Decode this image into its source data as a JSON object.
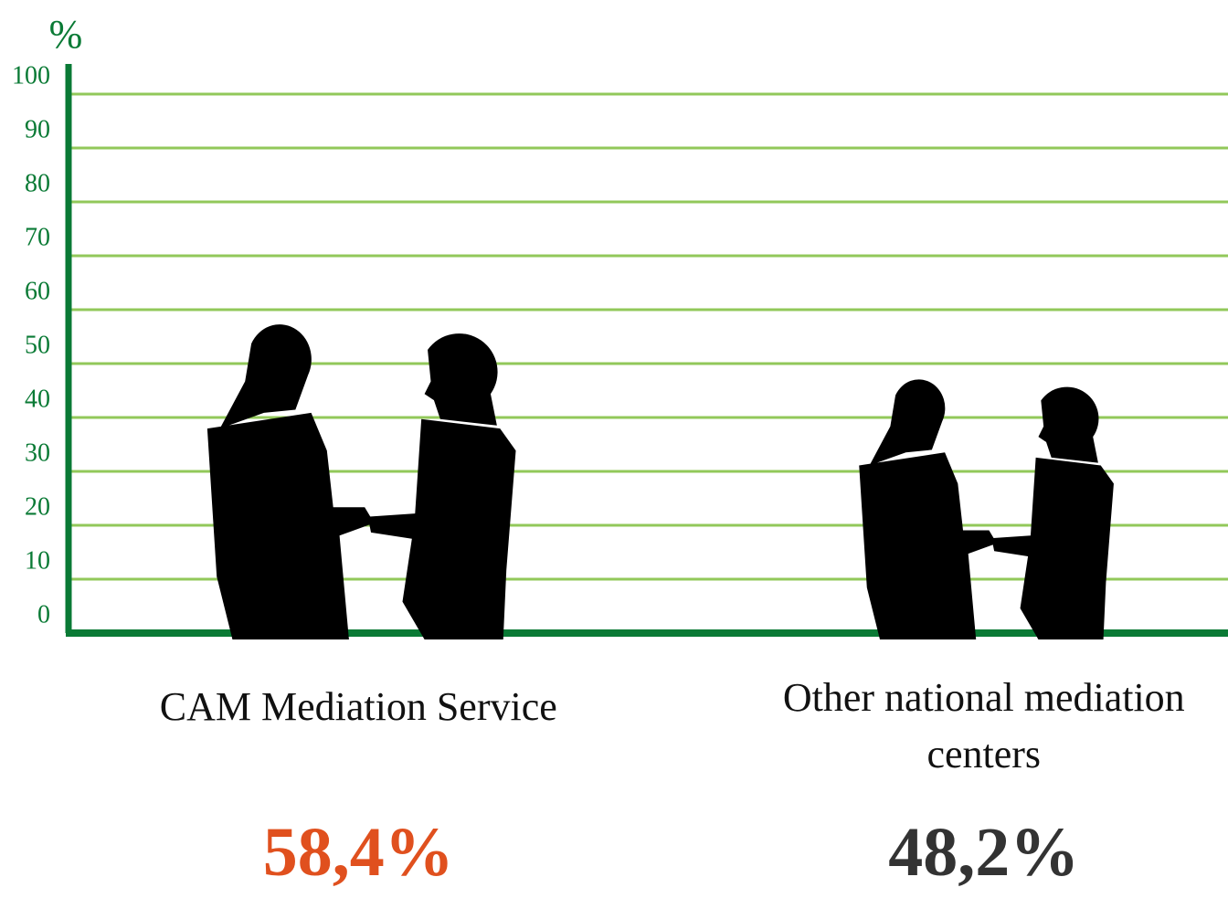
{
  "chart_data": {
    "type": "pictograph",
    "y_label": "%",
    "categories": [
      "CAM Mediation Service",
      "Other national mediation centers"
    ],
    "values": [
      58.4,
      48.2
    ],
    "value_labels": [
      "58,4%",
      "48,2%"
    ],
    "label_colors": [
      "#e0501e",
      "#333333"
    ],
    "color": "#000000",
    "ylim": [
      0,
      100
    ],
    "yticks": [
      0,
      10,
      20,
      30,
      40,
      50,
      60,
      70,
      80,
      90,
      100
    ],
    "grid": true
  }
}
